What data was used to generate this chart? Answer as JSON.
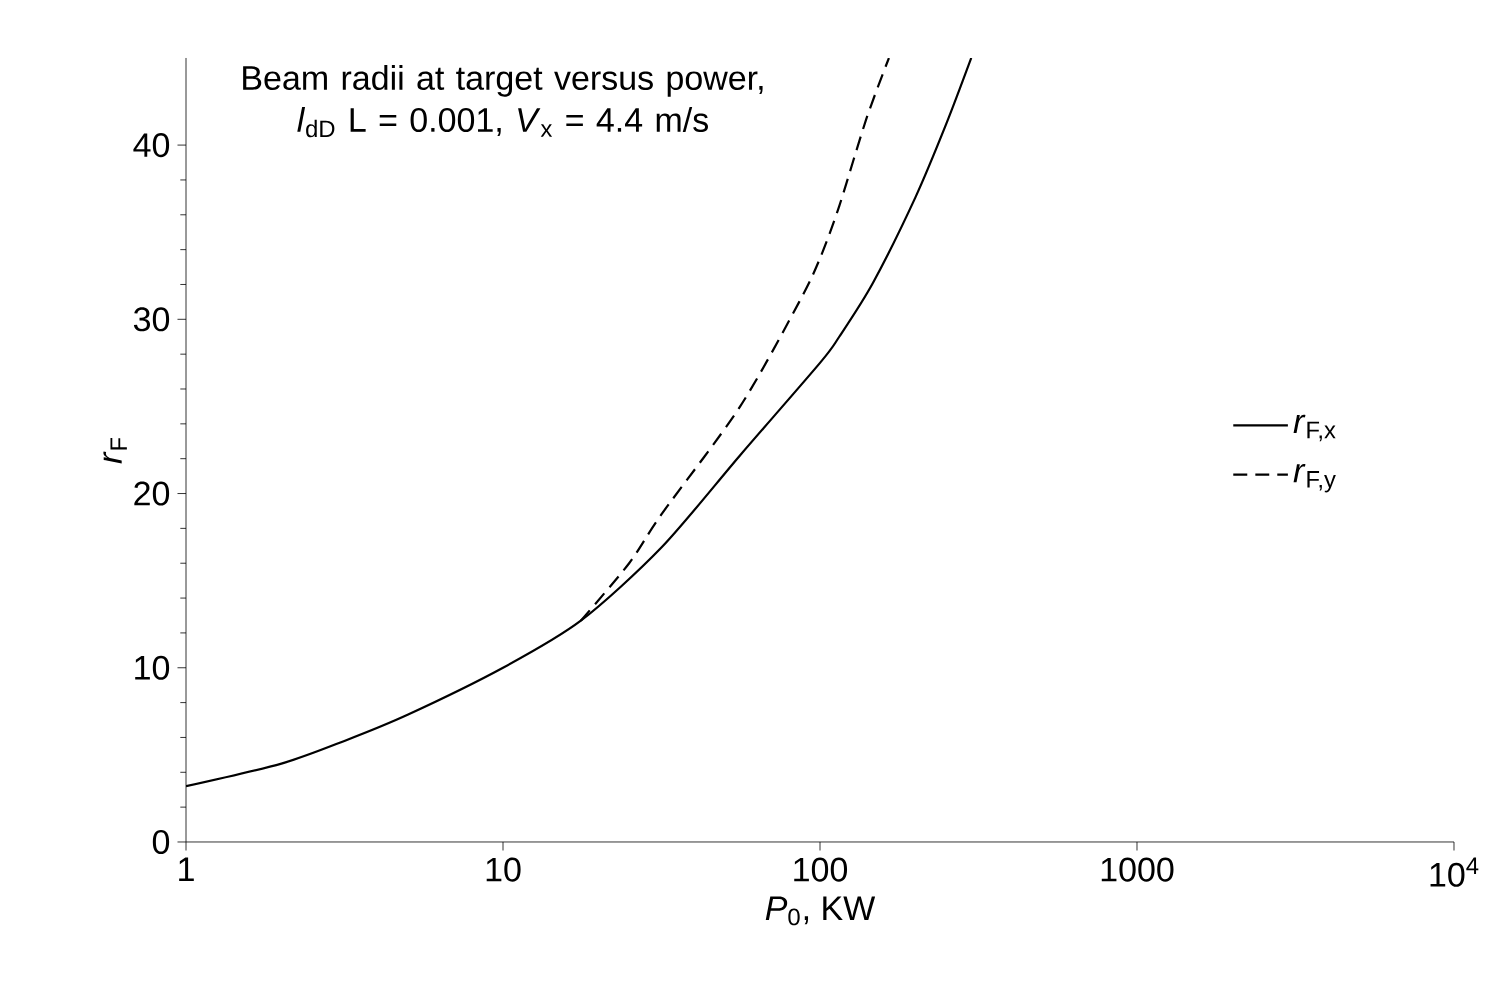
{
  "chart_data": {
    "type": "line",
    "title": "Beam radii at target versus power, *l*$_{dD}$ L = 0.001, *V*$_{x}$ = 4.4 m/s",
    "xlabel": "*P*$_{0}$, KW",
    "ylabel": "*r*$_{F}$",
    "log": "x",
    "xlim": [
      1,
      10000
    ],
    "xticks": [
      1,
      10,
      100,
      1000,
      {
        "value": 10000,
        "label": "10$^{4}$"
      }
    ],
    "ylim": [
      0,
      45
    ],
    "yticks": [
      0,
      10,
      20,
      30,
      40
    ],
    "legend": "right",
    "series": [
      {
        "name": "*r*$_{F,x}$",
        "color": "#000000",
        "line_style": "solid",
        "x": [
          1,
          2,
          3.16,
          5,
          10,
          17.6,
          31.6,
          56,
          100,
          115,
          147,
          200,
          250,
          300
        ],
        "values": [
          3.2,
          4.5,
          5.8,
          7.3,
          10.0,
          12.7,
          16.9,
          22.2,
          27.5,
          29.0,
          32.1,
          37.0,
          41.2,
          45.0
        ]
      },
      {
        "name": "*r*$_{F,y}$",
        "color": "#000000",
        "line_style": "dashed",
        "x": [
          17.6,
          25,
          31.6,
          56,
          86,
          100,
          115,
          140,
          165
        ],
        "values": [
          12.7,
          16.0,
          18.8,
          25.0,
          31.0,
          33.5,
          36.5,
          41.5,
          45.0
        ]
      }
    ]
  }
}
